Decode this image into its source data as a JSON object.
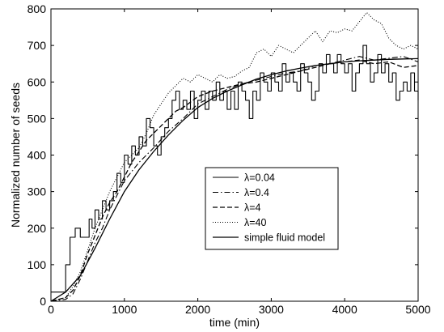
{
  "chart_data": {
    "type": "line",
    "xlabel": "time (min)",
    "ylabel": "Normalized number of seeds",
    "xlim": [
      0,
      5000
    ],
    "ylim": [
      0,
      800
    ],
    "xticks": [
      0,
      1000,
      2000,
      3000,
      4000,
      5000
    ],
    "yticks": [
      0,
      100,
      200,
      300,
      400,
      500,
      600,
      700,
      800
    ],
    "grid": false,
    "legend_position": "center-right",
    "series": [
      {
        "name": "λ=0.04",
        "style": "solid-step",
        "x": [
          0,
          150,
          200,
          260,
          300,
          330,
          400,
          480,
          520,
          560,
          600,
          650,
          700,
          750,
          800,
          850,
          900,
          950,
          1000,
          1050,
          1100,
          1150,
          1200,
          1250,
          1300,
          1350,
          1400,
          1450,
          1500,
          1550,
          1600,
          1650,
          1700,
          1750,
          1800,
          1850,
          1900,
          1950,
          2000,
          2050,
          2100,
          2150,
          2200,
          2250,
          2300,
          2350,
          2400,
          2450,
          2500,
          2550,
          2600,
          2650,
          2700,
          2750,
          2800,
          2850,
          2900,
          2950,
          3000,
          3050,
          3100,
          3150,
          3200,
          3250,
          3300,
          3350,
          3400,
          3450,
          3500,
          3550,
          3600,
          3650,
          3700,
          3750,
          3800,
          3850,
          3900,
          3950,
          4000,
          4050,
          4100,
          4150,
          4200,
          4250,
          4300,
          4350,
          4400,
          4450,
          4500,
          4550,
          4600,
          4650,
          4700,
          4750,
          4800,
          4850,
          4900,
          4950,
          5000
        ],
        "y": [
          25,
          25,
          100,
          175,
          175,
          200,
          175,
          175,
          225,
          200,
          250,
          225,
          275,
          250,
          275,
          300,
          350,
          325,
          400,
          375,
          425,
          400,
          450,
          425,
          500,
          475,
          425,
          400,
          450,
          475,
          500,
          550,
          575,
          525,
          550,
          525,
          575,
          500,
          550,
          575,
          525,
          575,
          550,
          600,
          550,
          575,
          525,
          575,
          525,
          600,
          575,
          550,
          500,
          575,
          550,
          625,
          600,
          575,
          625,
          600,
          575,
          650,
          600,
          625,
          600,
          575,
          650,
          625,
          600,
          550,
          575,
          650,
          625,
          675,
          650,
          625,
          675,
          650,
          625,
          650,
          575,
          625,
          650,
          700,
          650,
          600,
          625,
          675,
          625,
          650,
          600,
          625,
          550,
          575,
          600,
          575,
          625,
          575,
          550
        ]
      },
      {
        "name": "λ=0.4",
        "style": "dashdot",
        "x": [
          0,
          200,
          300,
          400,
          500,
          600,
          700,
          800,
          900,
          1000,
          1200,
          1400,
          1600,
          1800,
          2000,
          2200,
          2400,
          2600,
          2800,
          3000,
          3200,
          3400,
          3600,
          3800,
          4000,
          4200,
          4400,
          4600,
          4800,
          5000
        ],
        "y": [
          0,
          5,
          20,
          60,
          110,
          160,
          200,
          250,
          290,
          330,
          380,
          420,
          465,
          500,
          540,
          560,
          580,
          595,
          605,
          615,
          625,
          630,
          645,
          650,
          660,
          670,
          660,
          665,
          670,
          655
        ]
      },
      {
        "name": "λ=4",
        "style": "dashed",
        "x": [
          0,
          200,
          300,
          400,
          500,
          600,
          700,
          800,
          900,
          1000,
          1100,
          1200,
          1300,
          1400,
          1500,
          1600,
          1700,
          1800,
          1900,
          2000,
          2200,
          2400,
          2600,
          2800,
          3000,
          3200,
          3400,
          3600,
          3800,
          4000,
          4200,
          4400,
          4600,
          4800,
          5000
        ],
        "y": [
          0,
          10,
          30,
          70,
          130,
          180,
          230,
          270,
          300,
          340,
          380,
          410,
          440,
          460,
          480,
          500,
          520,
          530,
          545,
          560,
          575,
          585,
          595,
          600,
          610,
          620,
          630,
          640,
          650,
          655,
          660,
          650,
          655,
          640,
          645
        ]
      },
      {
        "name": "λ=40",
        "style": "dotted",
        "x": [
          0,
          200,
          300,
          400,
          500,
          600,
          700,
          800,
          900,
          1000,
          1100,
          1200,
          1300,
          1400,
          1500,
          1600,
          1700,
          1800,
          1900,
          2000,
          2100,
          2200,
          2300,
          2400,
          2500,
          2600,
          2700,
          2800,
          2900,
          3000,
          3100,
          3200,
          3300,
          3400,
          3500,
          3600,
          3700,
          3800,
          3900,
          4000,
          4100,
          4200,
          4300,
          4400,
          4500,
          4600,
          4700,
          4800,
          4900,
          5000
        ],
        "y": [
          0,
          10,
          40,
          80,
          140,
          200,
          250,
          300,
          340,
          380,
          400,
          420,
          460,
          510,
          540,
          570,
          590,
          610,
          600,
          620,
          610,
          600,
          620,
          610,
          615,
          630,
          640,
          680,
          690,
          670,
          700,
          690,
          680,
          700,
          720,
          740,
          710,
          740,
          735,
          745,
          740,
          765,
          790,
          770,
          760,
          720,
          700,
          690,
          700,
          690
        ]
      },
      {
        "name": "simple fluid model",
        "style": "solid-smooth",
        "x": [
          0,
          200,
          400,
          600,
          800,
          1000,
          1200,
          1400,
          1600,
          1800,
          2000,
          2200,
          2400,
          2600,
          2800,
          3000,
          3200,
          3400,
          3600,
          3800,
          4000,
          4200,
          4400,
          4600,
          4800,
          5000
        ],
        "y": [
          0,
          25,
          70,
          145,
          225,
          300,
          360,
          410,
          455,
          495,
          530,
          555,
          575,
          592,
          608,
          620,
          630,
          638,
          645,
          650,
          655,
          658,
          660,
          662,
          663,
          664
        ]
      }
    ]
  }
}
